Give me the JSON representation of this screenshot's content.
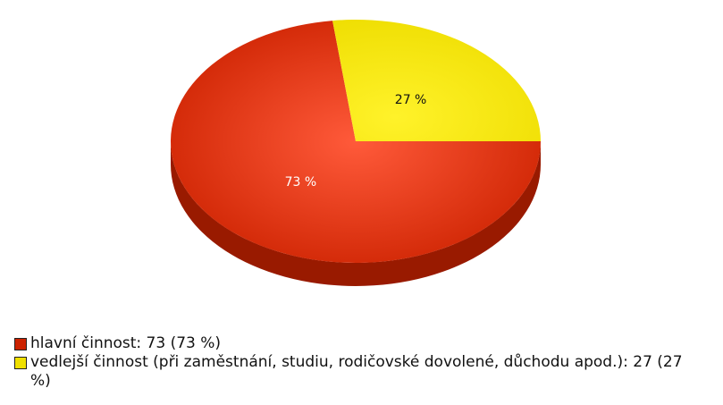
{
  "chart_data": {
    "type": "pie",
    "categories": [
      "hlavní činnost: 73 (73 %)",
      "vedlejší činnost (při zaměstnání, studiu, rodičovské dovolené, důchodu apod.): 27 (27 %)"
    ],
    "values": [
      73,
      27
    ],
    "value_labels": [
      "73 %",
      "27 %"
    ],
    "colors": [
      "#cc2200",
      "#f0e000"
    ],
    "legend": "bottom"
  }
}
